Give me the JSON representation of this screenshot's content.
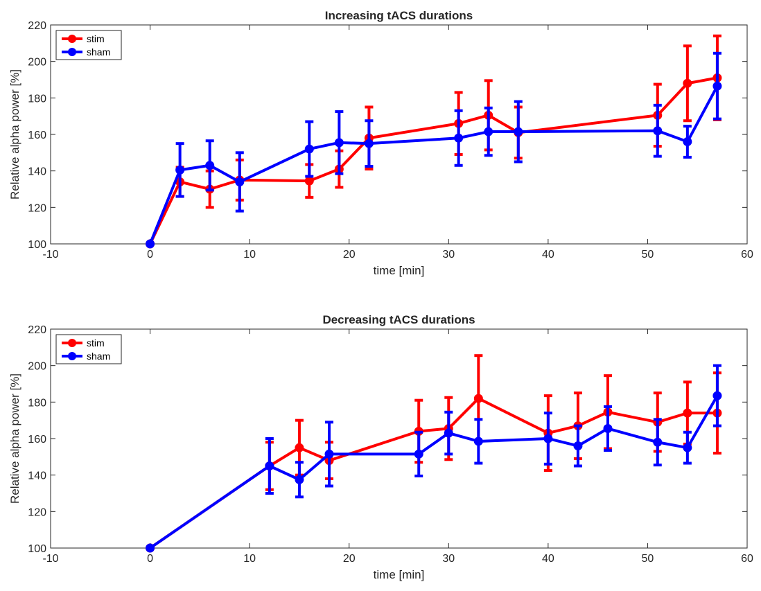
{
  "chart_data": [
    {
      "type": "line",
      "title": "Increasing tACS durations",
      "xlabel": "time [min]",
      "ylabel": "Relative alpha power [%]",
      "xlim": [
        -10,
        60
      ],
      "ylim": [
        100,
        220
      ],
      "xticks": [
        -10,
        0,
        10,
        20,
        30,
        40,
        50,
        60
      ],
      "yticks": [
        100,
        120,
        140,
        160,
        180,
        200,
        220
      ],
      "legend_position": "top-left",
      "series": [
        {
          "name": "stim",
          "color": "#ff0000",
          "x": [
            0,
            3,
            6,
            9,
            16,
            19,
            22,
            31,
            34,
            37,
            51,
            54,
            57
          ],
          "y": [
            100,
            134,
            130,
            135,
            134.5,
            141,
            158,
            166,
            170.5,
            161,
            170.5,
            188,
            191
          ],
          "err": [
            0,
            8,
            10,
            11,
            9,
            10,
            17,
            17,
            19,
            14,
            17,
            20.5,
            23
          ]
        },
        {
          "name": "sham",
          "color": "#0000ff",
          "x": [
            0,
            3,
            6,
            9,
            16,
            19,
            22,
            31,
            34,
            37,
            51,
            54,
            57
          ],
          "y": [
            100,
            140.5,
            143,
            134,
            152,
            155.5,
            155,
            158,
            161.5,
            161.5,
            162,
            156,
            186.5
          ],
          "err": [
            0,
            14.5,
            13.5,
            16,
            15,
            17,
            12.5,
            15,
            13,
            16.5,
            14,
            8.5,
            18
          ]
        }
      ]
    },
    {
      "type": "line",
      "title": "Decreasing tACS durations",
      "xlabel": "time [min]",
      "ylabel": "Relative alpha power [%]",
      "xlim": [
        -10,
        60
      ],
      "ylim": [
        100,
        220
      ],
      "xticks": [
        -10,
        0,
        10,
        20,
        30,
        40,
        50,
        60
      ],
      "yticks": [
        100,
        120,
        140,
        160,
        180,
        200,
        220
      ],
      "legend_position": "top-left",
      "series": [
        {
          "name": "stim",
          "color": "#ff0000",
          "x": [
            0,
            12,
            15,
            18,
            27,
            30,
            33,
            40,
            43,
            46,
            51,
            54,
            57
          ],
          "y": [
            100,
            145,
            155,
            148,
            164,
            165.5,
            182,
            163,
            167,
            174.5,
            169,
            174,
            174
          ],
          "err": [
            0,
            13,
            15,
            10,
            17,
            17,
            23.5,
            20.5,
            18,
            20,
            16,
            17,
            22
          ]
        },
        {
          "name": "sham",
          "color": "#0000ff",
          "x": [
            0,
            12,
            15,
            18,
            27,
            30,
            33,
            40,
            43,
            46,
            51,
            54,
            57
          ],
          "y": [
            100,
            145,
            137.5,
            151.5,
            151.5,
            163,
            158.5,
            160,
            156,
            165.5,
            158,
            155,
            183.5
          ],
          "err": [
            0,
            15,
            9.5,
            17.5,
            12,
            11.5,
            12,
            14,
            11,
            12,
            12.5,
            8.5,
            16.5
          ]
        }
      ]
    }
  ]
}
